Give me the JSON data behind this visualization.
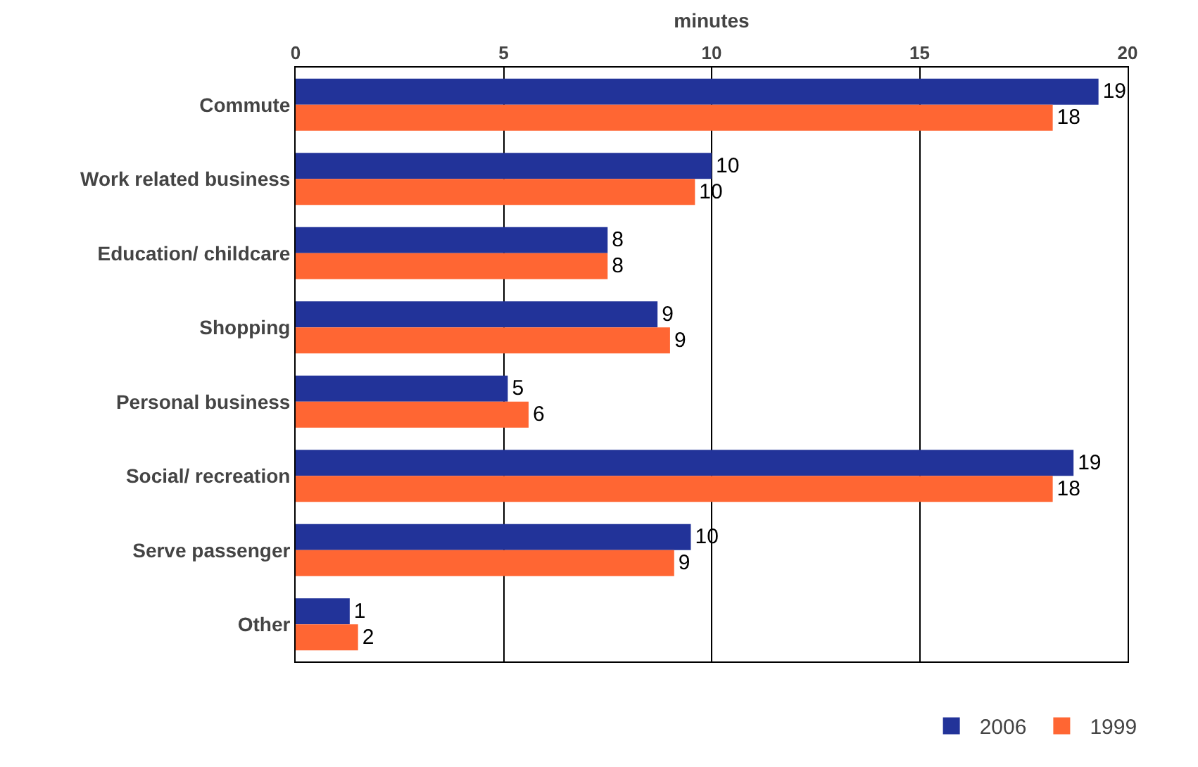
{
  "chart_data": {
    "type": "bar",
    "orientation": "horizontal",
    "xlabel": "minutes",
    "categories": [
      "Commute",
      "Work related business",
      "Education/ childcare",
      "Shopping",
      "Personal business",
      "Social/ recreation",
      "Serve passenger",
      "Other"
    ],
    "series": [
      {
        "name": "2006",
        "color": "#223399",
        "values": [
          19.3,
          10.0,
          7.5,
          8.7,
          5.1,
          18.7,
          9.5,
          1.3
        ],
        "value_labels": [
          "19",
          "10",
          "8",
          "9",
          "5",
          "19",
          "10",
          "1"
        ]
      },
      {
        "name": "1999",
        "color": "#ff6633",
        "values": [
          18.2,
          9.6,
          7.5,
          9.0,
          5.6,
          18.2,
          9.1,
          1.5
        ],
        "value_labels": [
          "18",
          "10",
          "8",
          "9",
          "6",
          "18",
          "9",
          "2"
        ]
      }
    ],
    "xlim": [
      0,
      20
    ],
    "xticks": [
      0,
      5,
      10,
      15,
      20
    ],
    "grid": "x",
    "legend": "bottom right"
  }
}
